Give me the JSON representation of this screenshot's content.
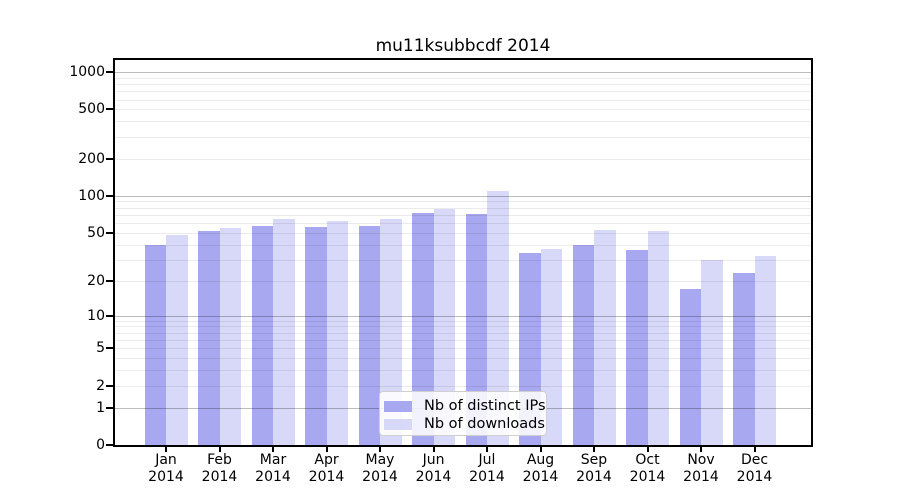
{
  "chart_data": {
    "type": "bar",
    "title": "mu11ksubbcdf 2014",
    "categories": [
      "Jan 2014",
      "Feb 2014",
      "Mar 2014",
      "Apr 2014",
      "May 2014",
      "Jun 2014",
      "Jul 2014",
      "Aug 2014",
      "Sep 2014",
      "Oct 2014",
      "Nov 2014",
      "Dec 2014"
    ],
    "series": [
      {
        "name": "Nb of distinct IPs",
        "color": "#a8a8f0",
        "values": [
          40,
          52,
          57,
          56,
          57,
          72,
          71,
          34,
          40,
          36,
          17,
          23
        ]
      },
      {
        "name": "Nb of downloads",
        "color": "#d8d8f8",
        "values": [
          48,
          55,
          65,
          62,
          65,
          78,
          110,
          37,
          53,
          52,
          30,
          32
        ]
      }
    ],
    "xlabel": "",
    "ylabel": "",
    "y_axis": {
      "scale": "log10(1+x)",
      "tick_values": [
        0,
        1,
        2,
        5,
        10,
        20,
        50,
        100,
        200,
        500,
        1000
      ],
      "grid_values": [
        1,
        2,
        3,
        4,
        5,
        6,
        7,
        8,
        9,
        10,
        20,
        30,
        40,
        50,
        60,
        70,
        80,
        90,
        100,
        200,
        300,
        400,
        500,
        600,
        700,
        800,
        900,
        1000
      ],
      "major_grid_values": [
        1,
        10,
        100,
        1000
      ],
      "ylim": [
        0,
        1250
      ]
    },
    "legend": {
      "position": "bottom-center"
    },
    "grid": true
  },
  "colors": {
    "grid_major": "rgba(0,0,0,0.26)",
    "grid_minor": "rgba(0,0,0,0.08)",
    "axis": "#000000",
    "background": "#ffffff"
  }
}
